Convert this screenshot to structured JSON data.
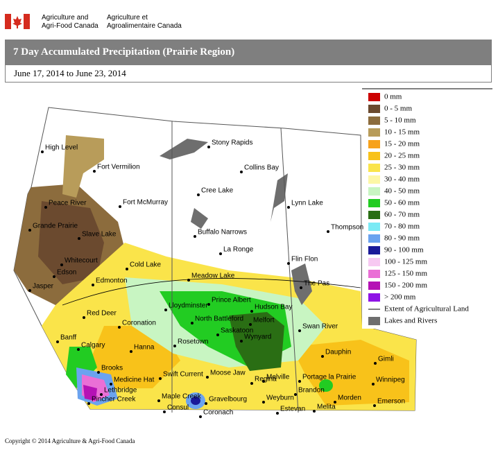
{
  "header": {
    "english": [
      "Agriculture and",
      "Agri-Food Canada"
    ],
    "french": [
      "Agriculture et",
      "Agroalimentaire Canada"
    ]
  },
  "title": "7 Day Accumulated Precipitation (Prairie Region)",
  "date_range": "June 17, 2014 to June 23, 2014",
  "legend": [
    {
      "label": "0 mm",
      "color": "#cc0000"
    },
    {
      "label": "0 - 5 mm",
      "color": "#6b4a2f"
    },
    {
      "label": "5 - 10 mm",
      "color": "#8c6c3d"
    },
    {
      "label": "10 - 15 mm",
      "color": "#b89c5a"
    },
    {
      "label": "15 - 20 mm",
      "color": "#f7a21b"
    },
    {
      "label": "20 - 25 mm",
      "color": "#f8c21a"
    },
    {
      "label": "25 - 30 mm",
      "color": "#fae44a"
    },
    {
      "label": "30 - 40 mm",
      "color": "#fdf7a6"
    },
    {
      "label": "40 - 50 mm",
      "color": "#c8f5c2"
    },
    {
      "label": "50 - 60 mm",
      "color": "#22cc22"
    },
    {
      "label": "60 - 70 mm",
      "color": "#2a6e14"
    },
    {
      "label": "70 - 80 mm",
      "color": "#7aeaf5"
    },
    {
      "label": "80 - 90 mm",
      "color": "#6ba3ef"
    },
    {
      "label": "90 - 100 mm",
      "color": "#1a1a99"
    },
    {
      "label": "100 - 125 mm",
      "color": "#f7c9f2"
    },
    {
      "label": "125 - 150 mm",
      "color": "#ea6fd6"
    },
    {
      "label": "150 - 200 mm",
      "color": "#b512b5"
    },
    {
      "label": "> 200 mm",
      "color": "#8f14e6"
    },
    {
      "label": "Extent of Agricultural Land",
      "color": "#000000"
    },
    {
      "label": "Lakes and Rivers",
      "color": "#6e6e6e"
    }
  ],
  "cities": [
    "High Level",
    "Fort Vermilion",
    "Stony Rapids",
    "Collins Bay",
    "Peace River",
    "Fort McMurray",
    "Cree Lake",
    "Lynn Lake",
    "Grande Prairie",
    "Slave Lake",
    "Buffalo Narrows",
    "Thompson",
    "La Ronge",
    "Whitecourt",
    "Cold Lake",
    "Flin Flon",
    "Edson",
    "Edmonton",
    "Meadow Lake",
    "Jasper",
    "The Pas",
    "Prince Albert",
    "Lloydminster",
    "Hudson Bay",
    "Red Deer",
    "North Battleford",
    "Melfort",
    "Coronation",
    "Swan River",
    "Saskatoon",
    "Wynyard",
    "Calgary",
    "Banff",
    "Hanna",
    "Rosetown",
    "Dauphin",
    "Gimli",
    "Brooks",
    "Melville",
    "Swift Current",
    "Moose Jaw",
    "Portage la Prairie",
    "Winnipeg",
    "Medicine Hat",
    "Regina",
    "Lethbridge",
    "Brandon",
    "Pincher Creek",
    "Maple Creek",
    "Gravelbourg",
    "Weyburn",
    "Morden",
    "Emerson",
    "Consul",
    "Estevan",
    "Melita",
    "Coronach"
  ],
  "copyright": "Copyright © 2014 Agriculture & Agri-Food Canada"
}
